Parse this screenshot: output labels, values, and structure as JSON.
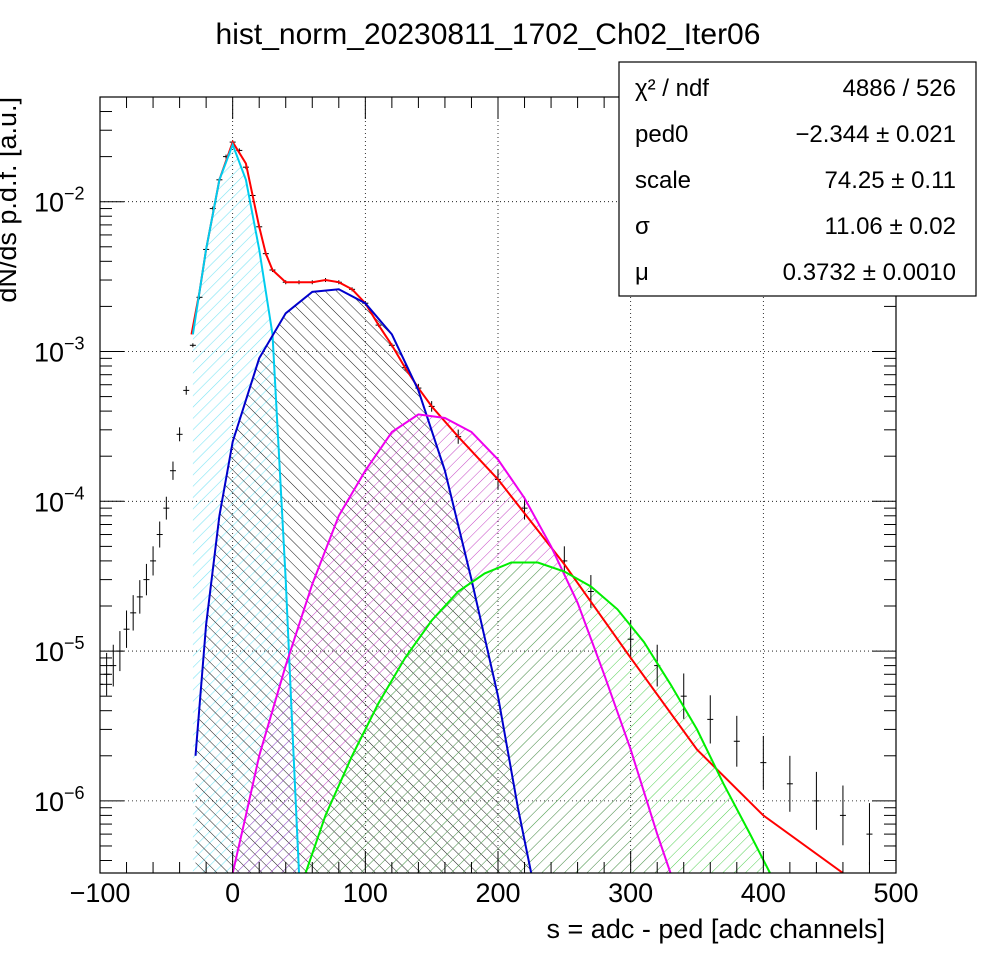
{
  "chart_data": {
    "type": "line",
    "title": "hist_norm_20230811_1702_Ch02_Iter06",
    "xlabel": "s = adc - ped [adc channels]",
    "ylabel": "dN/ds p.d.f. [a.u.]",
    "xlim": [
      -100,
      500
    ],
    "ylim": [
      3.3e-07,
      0.05
    ],
    "yscale": "log",
    "grid": true,
    "x_ticks": [
      -100,
      0,
      100,
      200,
      300,
      400,
      500
    ],
    "x_tick_labels": [
      "−100",
      "0",
      "100",
      "200",
      "300",
      "400",
      "500"
    ],
    "y_ticks": [
      {
        "value": 0.01,
        "mantissa": "10",
        "exponent": "−2"
      },
      {
        "value": 0.001,
        "mantissa": "10",
        "exponent": "−3"
      },
      {
        "value": 0.0001,
        "mantissa": "10",
        "exponent": "−4"
      },
      {
        "value": 1e-05,
        "mantissa": "10",
        "exponent": "−5"
      },
      {
        "value": 1e-06,
        "mantissa": "10",
        "exponent": "−6"
      }
    ],
    "stats_box": {
      "position": "top-right",
      "rows": [
        {
          "label": "χ² / ndf",
          "value": "4886 / 526"
        },
        {
          "label": "ped0",
          "value": "−2.344 ± 0.021"
        },
        {
          "label": "scale",
          "value": "74.25 ± 0.11"
        },
        {
          "label": "σ",
          "value": "11.06 ± 0.02"
        },
        {
          "label": "μ",
          "value": "0.3732 ± 0.0010"
        }
      ]
    },
    "series": [
      {
        "color": "#ff0000",
        "style": "line",
        "x": [
          -31,
          -25,
          -20,
          -10,
          0,
          10,
          20,
          25,
          30,
          40,
          50,
          60,
          70,
          80,
          90,
          100,
          110,
          120,
          130,
          140,
          150,
          170,
          200,
          250,
          300,
          350,
          400,
          460
        ],
        "y": [
          0.0013,
          0.0025,
          0.0048,
          0.014,
          0.025,
          0.018,
          0.0068,
          0.0045,
          0.0035,
          0.0029,
          0.0029,
          0.0029,
          0.003,
          0.0029,
          0.0026,
          0.0021,
          0.0015,
          0.0011,
          0.00078,
          0.00057,
          0.00043,
          0.00027,
          0.00014,
          3.8e-05,
          9e-06,
          2.2e-06,
          8e-07,
          3.3e-07
        ]
      },
      {
        "color": "#00ccee",
        "style": "filled",
        "fill": "#7fe5f5",
        "x": [
          -30,
          -20,
          -10,
          0,
          10,
          20,
          30,
          40,
          45,
          50
        ],
        "y": [
          0.0013,
          0.0048,
          0.014,
          0.024,
          0.014,
          0.0048,
          0.0013,
          3e-05,
          3e-06,
          3.3e-07
        ]
      },
      {
        "color": "#0000cc",
        "style": "filled",
        "fill": "#000000",
        "x": [
          -28,
          -20,
          -10,
          0,
          20,
          40,
          60,
          80,
          100,
          120,
          140,
          160,
          180,
          200,
          215,
          225
        ],
        "y": [
          2e-06,
          1.5e-05,
          8e-05,
          0.00025,
          0.0009,
          0.0018,
          0.0025,
          0.0026,
          0.0021,
          0.0013,
          0.00055,
          0.00016,
          3e-05,
          5e-06,
          9e-07,
          3.3e-07
        ]
      },
      {
        "color": "#ee00ee",
        "style": "filled",
        "fill": "#c030c0",
        "x": [
          0,
          10,
          20,
          40,
          60,
          80,
          100,
          120,
          140,
          160,
          180,
          200,
          220,
          240,
          260,
          280,
          300,
          320,
          330
        ],
        "y": [
          3.3e-07,
          8e-07,
          2e-06,
          8e-06,
          2.8e-05,
          8e-05,
          0.00016,
          0.00029,
          0.00038,
          0.00036,
          0.00029,
          0.00019,
          0.000105,
          5e-05,
          2.1e-05,
          7e-06,
          2.2e-06,
          6e-07,
          3.3e-07
        ]
      },
      {
        "color": "#00ee00",
        "style": "filled",
        "fill": "#40cc40",
        "x": [
          55,
          70,
          90,
          110,
          130,
          150,
          170,
          190,
          210,
          230,
          250,
          270,
          290,
          310,
          330,
          350,
          370,
          390,
          405
        ],
        "y": [
          3.3e-07,
          8e-07,
          2e-06,
          4.5e-06,
          9e-06,
          1.6e-05,
          2.5e-05,
          3.3e-05,
          3.9e-05,
          3.9e-05,
          3.4e-05,
          2.7e-05,
          1.9e-05,
          1.15e-05,
          6e-06,
          3e-06,
          1.3e-06,
          6e-07,
          3.3e-07
        ]
      },
      {
        "color": "#000000",
        "style": "points",
        "x": [
          -100,
          -95,
          -90,
          -85,
          -80,
          -75,
          -70,
          -65,
          -60,
          -55,
          -50,
          -45,
          -40,
          -35,
          -30,
          -25,
          -20,
          -15,
          -10,
          -5,
          0,
          5,
          10,
          15,
          20,
          25,
          30,
          40,
          50,
          60,
          70,
          80,
          90,
          100,
          110,
          120,
          130,
          140,
          150,
          170,
          200,
          220,
          250,
          270,
          300,
          320,
          340,
          360,
          380,
          400,
          420,
          440,
          460,
          480,
          500
        ],
        "y": [
          6e-06,
          7e-06,
          8e-06,
          1e-05,
          1.4e-05,
          1.8e-05,
          2.3e-05,
          3e-05,
          4e-05,
          6e-05,
          9e-05,
          0.00016,
          0.00028,
          0.00055,
          0.0011,
          0.0023,
          0.0048,
          0.009,
          0.014,
          0.02,
          0.025,
          0.022,
          0.017,
          0.011,
          0.0068,
          0.0045,
          0.0035,
          0.0029,
          0.0029,
          0.0029,
          0.003,
          0.0029,
          0.0026,
          0.0021,
          0.0015,
          0.0011,
          0.00078,
          0.00057,
          0.00043,
          0.00027,
          0.00014,
          9e-05,
          4e-05,
          2.5e-05,
          1.2e-05,
          8e-06,
          5e-06,
          3.5e-06,
          2.5e-06,
          1.8e-06,
          1.3e-06,
          1e-06,
          8e-07,
          6e-07,
          5e-07
        ]
      }
    ]
  }
}
